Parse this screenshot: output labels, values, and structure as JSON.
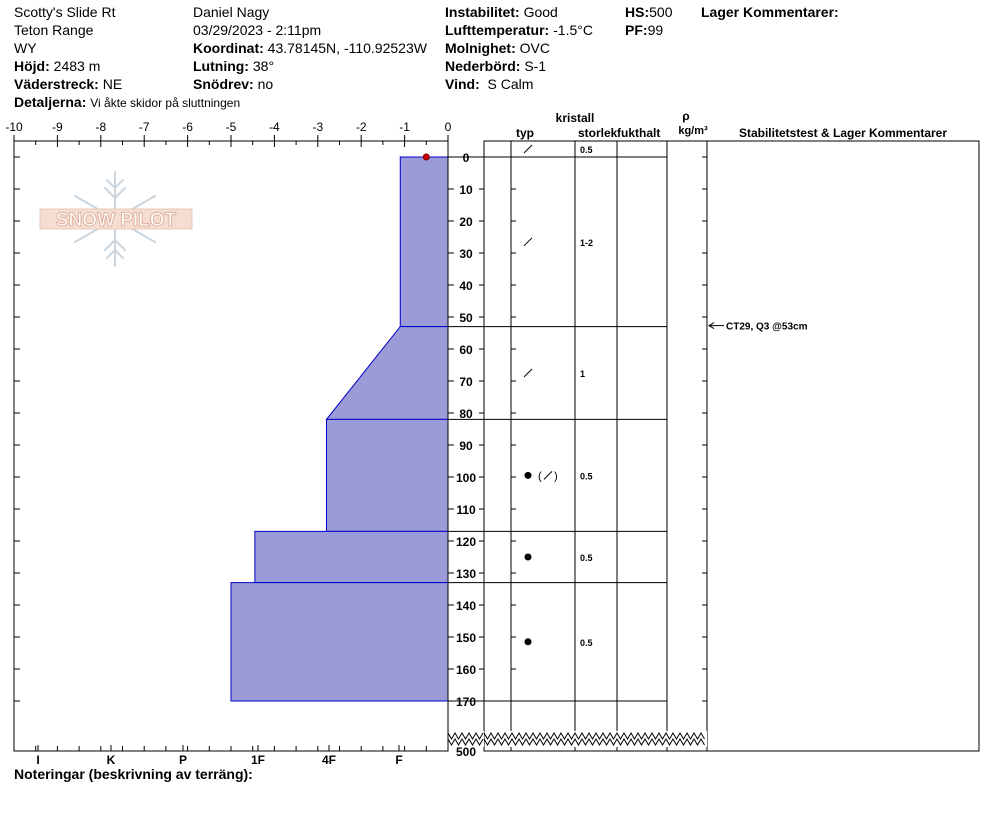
{
  "header": {
    "location": "Scotty's Slide Rt",
    "range": "Teton Range",
    "state": "WY",
    "elevation_label": "Höjd:",
    "elevation": "2483 m",
    "aspect_label": "Väderstreck:",
    "aspect": "NE",
    "details_label": "Detaljerna:",
    "details": "Vi åkte skidor på sluttningen",
    "observer": "Daniel Nagy",
    "datetime": "03/29/2023 - 2:11pm",
    "coord_label": "Koordinat:",
    "coord": "43.78145N, -110.92523W",
    "slope_label": "Lutning:",
    "slope": "38°",
    "wind_loading_label": "Snödrev:",
    "wind_loading": "no",
    "stability_label": "Instabilitet:",
    "stability": "Good",
    "air_temp_label": "Lufttemperatur:",
    "air_temp": "-1.5°C",
    "sky_label": "Molnighet:",
    "sky": "OVC",
    "precip_label": "Nederbörd:",
    "precip": "S-1",
    "wind_label": "Vind:",
    "wind": "S Calm",
    "hs_label": "HS:",
    "hs": "500",
    "pf_label": "PF:",
    "pf": "99",
    "layer_comments_label": "Lager Kommentarer:"
  },
  "logo": {
    "text": "SNOW PILOT"
  },
  "table": {
    "kristall_label": "kristall",
    "typ_label": "typ",
    "size_label": "storlek",
    "moisture_label": "fukthalt",
    "rho_label": "ρ",
    "density_unit": "kg/m³",
    "stability_col_label": "Stabilitetstest & Lager Kommentarer"
  },
  "notes_label": "Noteringar (beskrivning av terräng):",
  "colors": {
    "fill": "#9b9bd7",
    "line": "#0000c8",
    "marker": "#cc0000"
  },
  "chart_data": {
    "type": "snow-profile",
    "hardness_axis": {
      "ticks": [
        "-10",
        "-9",
        "-8",
        "-7",
        "-6",
        "-5",
        "-4",
        "-3",
        "-2",
        "-1",
        "0"
      ]
    },
    "hardness_labels": [
      "I",
      "K",
      "P",
      "1F",
      "4F",
      "F"
    ],
    "depth_axis": {
      "unit": "cm",
      "range": [
        0,
        170
      ],
      "ticks": [
        0,
        10,
        20,
        30,
        40,
        50,
        60,
        70,
        80,
        90,
        100,
        110,
        120,
        130,
        140,
        150,
        160,
        170
      ],
      "bottom_label": "500"
    },
    "surface_marker": {
      "depth": 0,
      "hardness": -0.5
    },
    "layers": [
      {
        "top": 0,
        "bottom": 53,
        "hardness_top": -1.1,
        "hardness_bottom": -1.1,
        "crystal": "decomposing",
        "size": "1-2"
      },
      {
        "top": 53,
        "bottom": 82,
        "hardness_top": -1.1,
        "hardness_bottom": -2.8,
        "crystal": "decomposing",
        "size": "1"
      },
      {
        "top": 82,
        "bottom": 117,
        "hardness_top": -2.8,
        "hardness_bottom": -2.8,
        "crystal": "rounded-mixed",
        "size": "0.5"
      },
      {
        "top": 117,
        "bottom": 133,
        "hardness_top": -4.45,
        "hardness_bottom": -4.45,
        "crystal": "rounded",
        "size": "0.5"
      },
      {
        "top": 133,
        "bottom": 170,
        "hardness_top": -5.0,
        "hardness_bottom": -5.0,
        "crystal": "rounded",
        "size": "0.5"
      }
    ],
    "surface_layer": {
      "crystal": "decomposing",
      "size": "0.5"
    },
    "stability_tests": [
      {
        "depth": 53,
        "text": "CT29, Q3 @53cm"
      }
    ]
  }
}
